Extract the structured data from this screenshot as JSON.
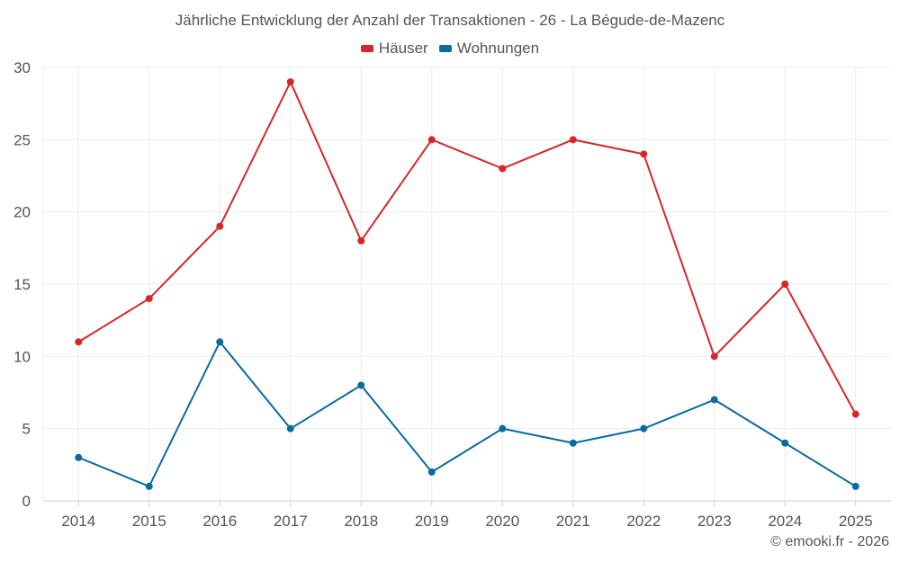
{
  "chart_data": {
    "type": "line",
    "title": "Jährliche Entwicklung der Anzahl der Transaktionen - 26 - La Bégude-de-Mazenc",
    "xlabel": "",
    "ylabel": "",
    "categories": [
      "2014",
      "2015",
      "2016",
      "2017",
      "2018",
      "2019",
      "2020",
      "2021",
      "2022",
      "2023",
      "2024",
      "2025"
    ],
    "series": [
      {
        "name": "Häuser",
        "color": "#d62728",
        "values": [
          11,
          14,
          19,
          29,
          18,
          25,
          23,
          25,
          24,
          10,
          15,
          6
        ]
      },
      {
        "name": "Wohnungen",
        "color": "#0b6aa0",
        "values": [
          3,
          1,
          11,
          5,
          8,
          2,
          5,
          4,
          5,
          7,
          4,
          1
        ]
      }
    ],
    "ylim": [
      0,
      30
    ],
    "yticks": [
      0,
      5,
      10,
      15,
      20,
      25,
      30
    ],
    "grid": true,
    "legend_position": "top-center"
  },
  "credit": "© emooki.fr - 2026"
}
